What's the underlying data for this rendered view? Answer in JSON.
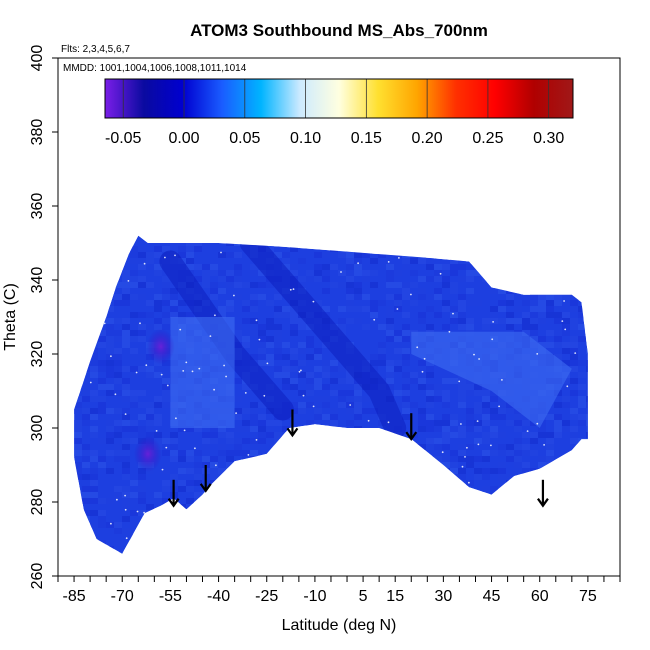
{
  "chart_data": {
    "type": "heatmap",
    "title": "ATOM3 Southbound MS_Abs_700nm",
    "flights_label": "Flts: 2,3,4,5,6,7",
    "mmdd_label": "MMDD: 1001,1004,1006,1008,1011,1014",
    "xlabel": "Latitude (deg N)",
    "ylabel": "Theta (C)",
    "xlim": [
      -90,
      85
    ],
    "ylim": [
      260,
      400
    ],
    "x_ticks": [
      -85,
      -70,
      -55,
      -40,
      -25,
      -10,
      5,
      15,
      30,
      45,
      60,
      75
    ],
    "x_minor_step": 5,
    "y_ticks": [
      260,
      280,
      300,
      320,
      340,
      360,
      380,
      400
    ],
    "colorbar": {
      "ticks": [
        -0.05,
        0.0,
        0.05,
        0.1,
        0.15,
        0.2,
        0.25,
        0.3
      ],
      "tick_labels": [
        "-0.05",
        "0.00",
        "0.05",
        "0.10",
        "0.15",
        "0.20",
        "0.25",
        "0.30"
      ],
      "range": [
        -0.065,
        0.32
      ],
      "colors": [
        "#7a1ee8",
        "#0a0aa0",
        "#0000d0",
        "#1a5cff",
        "#00b4ff",
        "#cdeaff",
        "#ffffe0",
        "#ffe030",
        "#ffa500",
        "#ff3000",
        "#ff0000",
        "#b00000",
        "#a01818"
      ]
    },
    "field_boundary": {
      "top": [
        [
          -72,
          338
        ],
        [
          -68,
          347
        ],
        [
          -65,
          352
        ],
        [
          -62,
          350
        ],
        [
          -40,
          350
        ],
        [
          -20,
          349
        ],
        [
          -5,
          348
        ],
        [
          10,
          347
        ],
        [
          25,
          346
        ],
        [
          38,
          345
        ],
        [
          45,
          338
        ],
        [
          55,
          336
        ],
        [
          70,
          336
        ],
        [
          73,
          334
        ]
      ],
      "bottom": [
        [
          -85,
          292
        ],
        [
          -82,
          278
        ],
        [
          -78,
          270
        ],
        [
          -70,
          266
        ],
        [
          -63,
          277
        ],
        [
          -58,
          279
        ],
        [
          -54,
          281
        ],
        [
          -50,
          278
        ],
        [
          -45,
          282
        ],
        [
          -42,
          285
        ],
        [
          -35,
          291
        ],
        [
          -25,
          293
        ],
        [
          -18,
          300
        ],
        [
          -10,
          301
        ],
        [
          0,
          300
        ],
        [
          10,
          300
        ],
        [
          20,
          297
        ],
        [
          30,
          290
        ],
        [
          38,
          284
        ],
        [
          45,
          282
        ],
        [
          52,
          287
        ],
        [
          60,
          289
        ],
        [
          66,
          292
        ],
        [
          70,
          294
        ],
        [
          73,
          297
        ]
      ],
      "left_edge": [
        [
          -85,
          292
        ],
        [
          -85,
          305
        ],
        [
          -80,
          318
        ],
        [
          -75,
          330
        ],
        [
          -72,
          338
        ]
      ],
      "right_edge": [
        [
          73,
          334
        ],
        [
          75,
          320
        ],
        [
          75,
          297
        ],
        [
          73,
          297
        ]
      ]
    },
    "features": [
      {
        "type": "dark-band",
        "points": [
          [
            -30,
            350
          ],
          [
            -10,
            330
          ],
          [
            10,
            310
          ],
          [
            15,
            300
          ]
        ],
        "value": -0.01
      },
      {
        "type": "dark-band",
        "points": [
          [
            -55,
            345
          ],
          [
            -35,
            320
          ],
          [
            -20,
            305
          ]
        ],
        "value": -0.01
      },
      {
        "type": "light-patch",
        "points": [
          [
            20,
            326
          ],
          [
            55,
            326
          ],
          [
            70,
            316
          ],
          [
            60,
            300
          ],
          [
            45,
            310
          ],
          [
            20,
            320
          ]
        ],
        "value": 0.03
      },
      {
        "type": "light-patch",
        "points": [
          [
            -55,
            330
          ],
          [
            -35,
            330
          ],
          [
            -35,
            300
          ],
          [
            -55,
            300
          ]
        ],
        "value": 0.025
      },
      {
        "type": "purple-spot",
        "center": [
          -58,
          322
        ],
        "value": -0.03
      },
      {
        "type": "purple-spot",
        "center": [
          -62,
          293
        ],
        "value": -0.02
      }
    ],
    "arrows": [
      {
        "x": -54,
        "y_top": 286,
        "y_bottom": 279
      },
      {
        "x": -44,
        "y_top": 290,
        "y_bottom": 283
      },
      {
        "x": -17,
        "y_top": 305,
        "y_bottom": 298
      },
      {
        "x": 20,
        "y_top": 304,
        "y_bottom": 297
      },
      {
        "x": 61,
        "y_top": 286,
        "y_bottom": 279
      }
    ]
  }
}
